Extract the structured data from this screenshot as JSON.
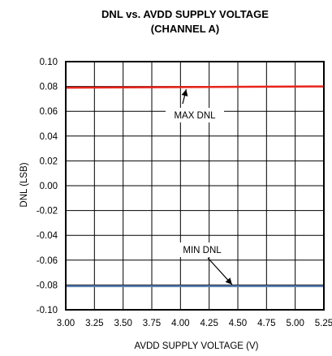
{
  "chart_data": {
    "type": "line",
    "title": "DNL vs. AVDD SUPPLY VOLTAGE",
    "subtitle": "(CHANNEL A)",
    "xlabel": "AVDD SUPPLY VOLTAGE (V)",
    "ylabel": "DNL (LSB)",
    "xlim": [
      3.0,
      5.25
    ],
    "ylim": [
      -0.1,
      0.1
    ],
    "x_ticks": [
      "3.00",
      "3.25",
      "3.50",
      "3.75",
      "4.00",
      "4.25",
      "4.50",
      "4.75",
      "5.00",
      "5.25"
    ],
    "y_ticks": [
      "0.10",
      "0.08",
      "0.06",
      "0.04",
      "0.02",
      "0.00",
      "-0.02",
      "-0.04",
      "-0.06",
      "-0.08",
      "-0.10"
    ],
    "grid": true,
    "series": [
      {
        "name": "MAX DNL",
        "color": "#e8241a",
        "x": [
          3.0,
          5.25
        ],
        "y": [
          0.079,
          0.08
        ]
      },
      {
        "name": "MIN DNL",
        "color": "#5b7fb3",
        "x": [
          3.0,
          5.25
        ],
        "y": [
          -0.081,
          -0.081
        ]
      }
    ],
    "annotations": [
      {
        "text": "MAX DNL",
        "series": 0
      },
      {
        "text": "MIN DNL",
        "series": 1
      }
    ]
  }
}
